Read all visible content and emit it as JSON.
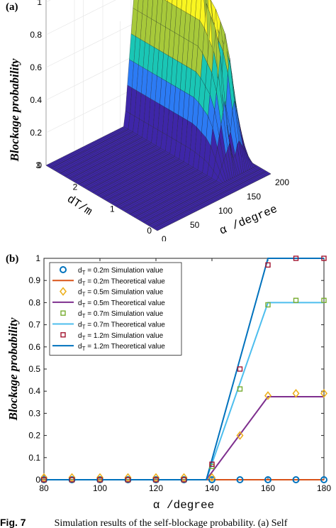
{
  "figure": {
    "caption_label": "Fig. 7",
    "caption_text": "Simulation results of the self-blockage probability. (a) Self"
  },
  "panel_a": {
    "label": "(a)",
    "chart_data": {
      "type": "surface",
      "zlabel": "Blockage probability",
      "xlabel": "α /degree",
      "ylabel": "d_T/m",
      "z_ticks": [
        "0",
        "0.2",
        "0.4",
        "0.6",
        "0.8",
        "1"
      ],
      "x_ticks": [
        "0",
        "50",
        "100",
        "150",
        "200"
      ],
      "y_ticks": [
        "0",
        "1",
        "2",
        "3"
      ],
      "zlim": [
        0,
        1
      ],
      "xlim": [
        0,
        200
      ],
      "ylim": [
        0,
        3
      ],
      "colormap": [
        "#3e26a8",
        "#2c7bf4",
        "#1ac6b5",
        "#a7c93a",
        "#f9f520"
      ],
      "levels_z": [
        0.38,
        0.8,
        1.0
      ],
      "description_rows": [
        {
          "d_T": 0.5,
          "plateau": 0.38
        },
        {
          "d_T": 0.7,
          "plateau": 0.8
        },
        {
          "d_T": 1.2,
          "plateau": 1.0
        }
      ]
    }
  },
  "panel_b": {
    "label": "(b)",
    "chart_data": {
      "type": "line",
      "xlabel": "α /degree",
      "ylabel": "Blockage probability",
      "xlim": [
        80,
        180
      ],
      "ylim": [
        0,
        1
      ],
      "x_ticks": [
        80,
        100,
        120,
        140,
        160,
        180
      ],
      "y_ticks": [
        0,
        0.1,
        0.2,
        0.3,
        0.4,
        0.5,
        0.6,
        0.7,
        0.8,
        0.9,
        1
      ],
      "grid": false,
      "legend_position": "top-left",
      "series": [
        {
          "name": "d_T = 0.2m Simulation value",
          "kind": "marker",
          "marker": "circle",
          "color": "#0072bd",
          "x": [
            80,
            90,
            100,
            110,
            120,
            130,
            140,
            150,
            160,
            170,
            180
          ],
          "y": [
            0,
            0,
            0,
            0,
            0,
            0,
            0,
            0,
            0,
            0,
            0
          ]
        },
        {
          "name": "d_T = 0.2m Theoretical value",
          "kind": "line",
          "color": "#d95319",
          "x": [
            80,
            180
          ],
          "y": [
            0,
            0
          ]
        },
        {
          "name": "d_T = 0.5m Simulation value",
          "kind": "marker",
          "marker": "diamond",
          "color": "#edb120",
          "x": [
            80,
            90,
            100,
            110,
            120,
            130,
            140,
            150,
            160,
            170,
            180
          ],
          "y": [
            0.01,
            0.01,
            0.01,
            0.01,
            0.01,
            0.01,
            0.01,
            0.2,
            0.38,
            0.39,
            0.39
          ]
        },
        {
          "name": "d_T = 0.5m Theoretical value",
          "kind": "line",
          "color": "#7e2f8e",
          "x": [
            80,
            138,
            160,
            180
          ],
          "y": [
            0,
            0,
            0.375,
            0.375
          ]
        },
        {
          "name": "d_T = 0.7m Simulation value",
          "kind": "marker",
          "marker": "square",
          "color": "#77ac30",
          "x": [
            80,
            90,
            100,
            110,
            120,
            130,
            140,
            150,
            160,
            170,
            180
          ],
          "y": [
            0,
            0,
            0,
            0,
            0,
            0,
            0.06,
            0.41,
            0.79,
            0.81,
            0.81
          ]
        },
        {
          "name": "d_T = 0.7m Theoretical value",
          "kind": "line",
          "color": "#4dbeee",
          "x": [
            80,
            138,
            160,
            180
          ],
          "y": [
            0,
            0,
            0.8,
            0.8
          ]
        },
        {
          "name": "d_T = 1.2m Simulation value",
          "kind": "marker",
          "marker": "square",
          "color": "#a2142f",
          "x": [
            80,
            90,
            100,
            110,
            120,
            130,
            140,
            150,
            160,
            170,
            180
          ],
          "y": [
            0,
            0,
            0,
            0,
            0,
            0,
            0.07,
            0.5,
            0.97,
            1,
            1
          ]
        },
        {
          "name": "d_T = 1.2m Theoretical value",
          "kind": "line",
          "color": "#0072bd",
          "x": [
            80,
            138,
            160,
            180
          ],
          "y": [
            0,
            0,
            1,
            1
          ]
        }
      ]
    }
  }
}
